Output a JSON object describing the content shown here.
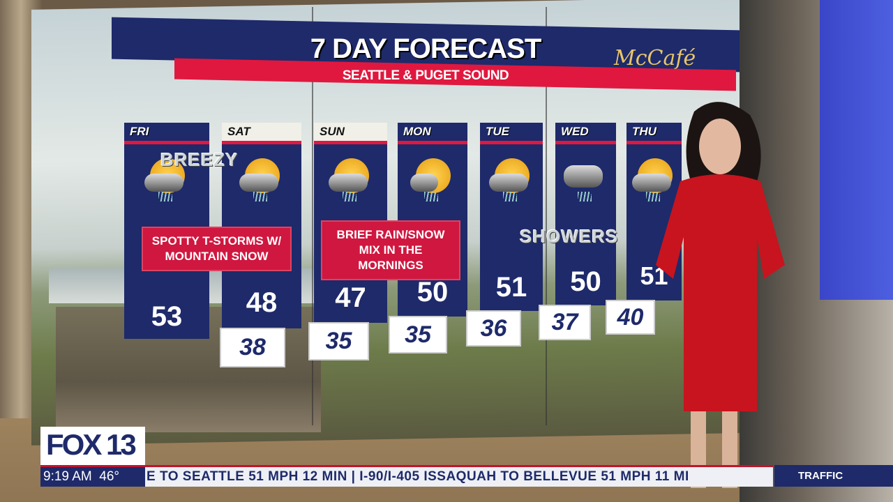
{
  "graphic": {
    "title": "7 DAY FORECAST",
    "subtitle": "SEATTLE & PUGET SOUND",
    "sponsor": "McCafé"
  },
  "days": [
    {
      "day": "FRI",
      "high": "53",
      "low": "",
      "icon": "sun-thunderstorm-icon"
    },
    {
      "day": "SAT",
      "high": "48",
      "low": "38",
      "icon": "sun-thunderstorm-icon"
    },
    {
      "day": "SUN",
      "high": "47",
      "low": "35",
      "icon": "sun-rain-snow-icon"
    },
    {
      "day": "MON",
      "high": "50",
      "low": "35",
      "icon": "sun-rain-snow-icon"
    },
    {
      "day": "TUE",
      "high": "51",
      "low": "36",
      "icon": "sun-showers-icon"
    },
    {
      "day": "WED",
      "high": "50",
      "low": "37",
      "icon": "cloud-showers-icon"
    },
    {
      "day": "THU",
      "high": "51",
      "low": "40",
      "icon": "sun-showers-icon"
    }
  ],
  "notes": {
    "storms": "SPOTTY T-STORMS W/ MOUNTAIN SNOW",
    "mix": "BRIEF RAIN/SNOW MIX IN THE MORNINGS",
    "breezy": "BREEZY",
    "showers": "SHOWERS"
  },
  "bug": {
    "logo": "FOX 13",
    "time": "9:19 AM",
    "temp": "46°"
  },
  "ticker": {
    "text": "E TO SEATTLE 51 MPH 12 MIN | I-90/I-405 ISSAQUAH TO BELLEVUE 51 MPH 11 MI",
    "label": "TRAFFIC"
  },
  "colors": {
    "navy": "#1e2a6a",
    "red": "#e0183f"
  }
}
